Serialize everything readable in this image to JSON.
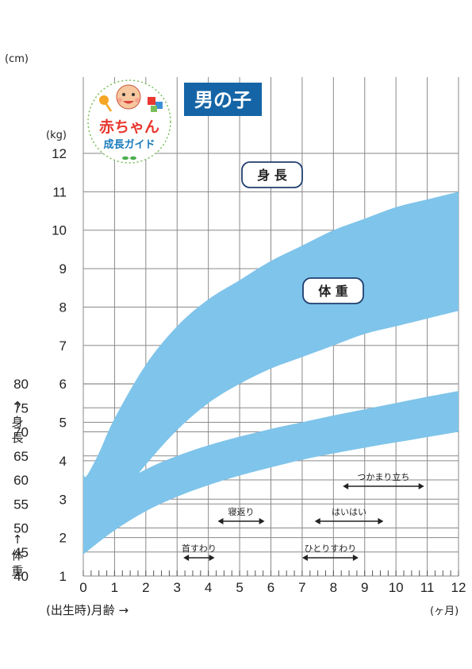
{
  "title": "男の子",
  "logo": {
    "line1": "赤ちゃん",
    "line2": "成長ガイド"
  },
  "chart_data": {
    "type": "area",
    "x": {
      "min": 0,
      "max": 12,
      "ticks": [
        0,
        1,
        2,
        3,
        4,
        5,
        6,
        7,
        8,
        9,
        10,
        11,
        12
      ],
      "label": "(出生時)月齢 →",
      "unit": "(ヶ月)"
    },
    "y_height": {
      "min": 40,
      "max": 80,
      "ticks": [
        40,
        45,
        50,
        55,
        60,
        65,
        70,
        75,
        80
      ],
      "unit": "(cm)",
      "label": "↑ 身長"
    },
    "y_weight": {
      "min": 1,
      "max": 12,
      "ticks": [
        1,
        2,
        3,
        4,
        5,
        6,
        7,
        8,
        9,
        10,
        11,
        12
      ],
      "unit": "(kg)",
      "label": "↑ 体重"
    },
    "series": [
      {
        "name": "身長",
        "axis": "height",
        "x": [
          0,
          1,
          2,
          3,
          4,
          5,
          6,
          7,
          8,
          9,
          10,
          11,
          12
        ],
        "upper": [
          53.5,
          58.5,
          62.2,
          65.0,
          67.2,
          69.0,
          70.6,
          72.0,
          73.4,
          74.7,
          76.0,
          77.3,
          78.5
        ],
        "lower": [
          44.5,
          49.5,
          53.5,
          56.5,
          58.9,
          60.9,
          62.6,
          64.2,
          65.5,
          66.7,
          67.8,
          68.9,
          70.0
        ]
      },
      {
        "name": "体重",
        "axis": "weight",
        "x": [
          0,
          0.1,
          0.5,
          1,
          2,
          3,
          4,
          5,
          6,
          7,
          8,
          9,
          10,
          11,
          12
        ],
        "upper": [
          3.7,
          3.6,
          4.2,
          5.1,
          6.5,
          7.5,
          8.2,
          8.7,
          9.2,
          9.6,
          10.0,
          10.3,
          10.6,
          10.8,
          11.0
        ],
        "lower": [
          2.1,
          2.05,
          2.4,
          2.9,
          3.9,
          4.8,
          5.5,
          6.0,
          6.4,
          6.7,
          7.0,
          7.3,
          7.5,
          7.7,
          7.9
        ]
      }
    ],
    "milestones": [
      {
        "label": "首すわり",
        "from": 3.2,
        "to": 4.2
      },
      {
        "label": "寝返り",
        "from": 4.3,
        "to": 5.8
      },
      {
        "label": "ひとりすわり",
        "from": 7.0,
        "to": 8.8
      },
      {
        "label": "はいはい",
        "from": 7.4,
        "to": 9.6
      },
      {
        "label": "つかまり立ち",
        "from": 8.3,
        "to": 10.9
      }
    ],
    "band_color": "#7fc4ea",
    "title_color": "#1565a6",
    "grid": true
  }
}
